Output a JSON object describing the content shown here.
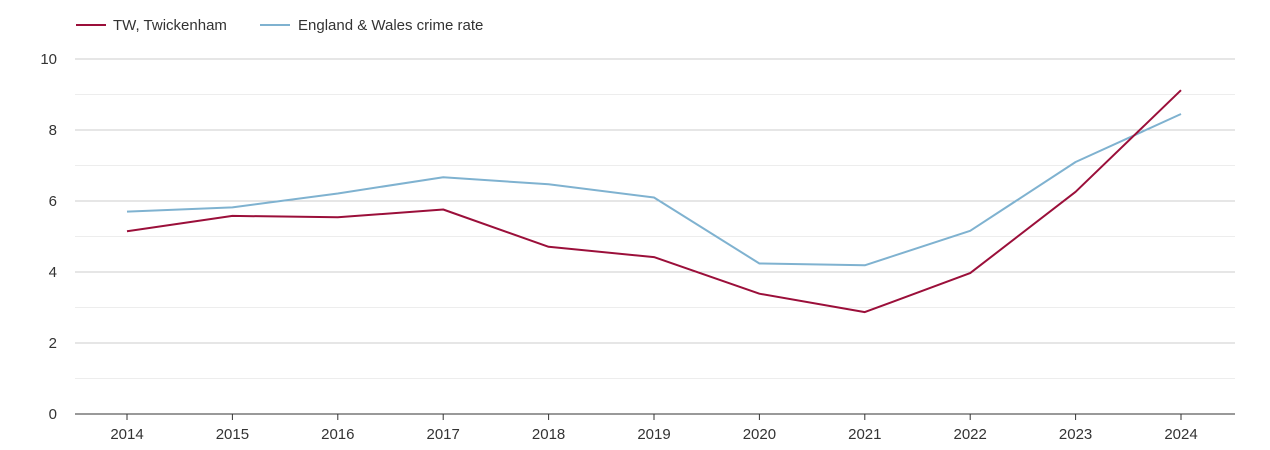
{
  "chart_data": {
    "type": "line",
    "title": "",
    "xlabel": "",
    "ylabel": "",
    "categories": [
      "2014",
      "2015",
      "2016",
      "2017",
      "2018",
      "2019",
      "2020",
      "2021",
      "2022",
      "2023",
      "2024"
    ],
    "ylim": [
      0,
      10
    ],
    "yticks": [
      "0",
      "2",
      "4",
      "6",
      "8",
      "10"
    ],
    "grid": true,
    "legend_position": "top-left",
    "series": [
      {
        "name": "TW, Twickenham",
        "color": "#9b0f3a",
        "values": [
          5.15,
          5.58,
          5.54,
          5.76,
          4.71,
          4.42,
          3.39,
          2.87,
          3.97,
          6.26,
          9.12
        ]
      },
      {
        "name": "England & Wales crime rate",
        "color": "#7fb2d0",
        "values": [
          5.7,
          5.82,
          6.21,
          6.67,
          6.47,
          6.1,
          4.24,
          4.19,
          5.16,
          7.1,
          8.45
        ]
      }
    ]
  }
}
